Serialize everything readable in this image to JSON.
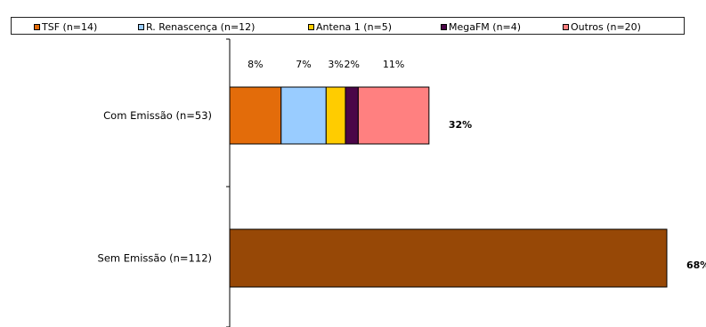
{
  "chart_data": {
    "type": "bar",
    "orientation": "horizontal",
    "stacked": true,
    "categories": [
      "Com Emissão (n=53)",
      "Sem Emissão (n=112)"
    ],
    "series": [
      {
        "name": "TSF (n=14)",
        "color": "#e36c0a",
        "values": [
          8,
          null
        ],
        "labels": [
          "8%",
          ""
        ]
      },
      {
        "name": "R. Renascença (n=12)",
        "color": "#99ccff",
        "values": [
          7,
          null
        ],
        "labels": [
          "7%",
          ""
        ]
      },
      {
        "name": "Antena 1 (n=5)",
        "color": "#ffcc00",
        "values": [
          3,
          null
        ],
        "labels": [
          "3%",
          ""
        ]
      },
      {
        "name": "MegaFM (n=4)",
        "color": "#4b0648",
        "values": [
          2,
          null
        ],
        "labels": [
          "2%",
          ""
        ]
      },
      {
        "name": "Outros (n=20)",
        "color": "#ff8080",
        "values": [
          11,
          null
        ],
        "labels": [
          "11%",
          ""
        ]
      },
      {
        "name": "",
        "color": "#974806",
        "values": [
          null,
          68
        ],
        "labels": [
          "",
          ""
        ]
      }
    ],
    "totals": [
      32,
      68
    ],
    "total_labels": [
      "32%",
      "68%"
    ],
    "legend_position": "top",
    "grid": false
  }
}
